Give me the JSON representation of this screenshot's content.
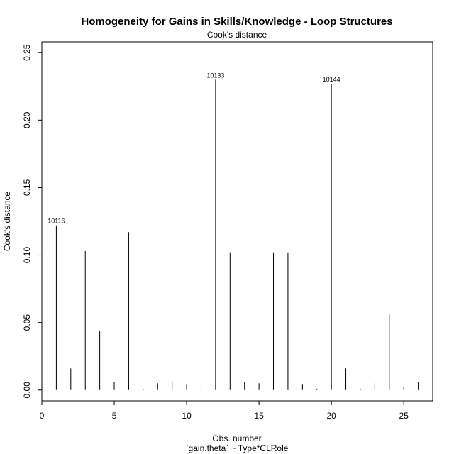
{
  "chart_data": {
    "type": "bar",
    "title": "Homogeneity for Gains in Skills/Knowledge - Loop Structures",
    "subtitle": "Cook's distance",
    "xlabel": "Obs. number",
    "xlabel2": "`gain.theta` ~ Type*CLRole",
    "ylabel": "Cook's distance",
    "xlim": [
      0,
      27
    ],
    "ylim": [
      -0.008,
      0.258
    ],
    "x_ticks": [
      0,
      5,
      10,
      15,
      20,
      25
    ],
    "y_ticks": [
      0.0,
      0.05,
      0.1,
      0.15,
      0.2,
      0.25
    ],
    "y_tick_labels": [
      "0.00",
      "0.05",
      "0.10",
      "0.15",
      "0.20",
      "0.25"
    ],
    "x": [
      1,
      2,
      3,
      4,
      5,
      6,
      7,
      8,
      9,
      10,
      11,
      12,
      13,
      14,
      15,
      16,
      17,
      18,
      19,
      20,
      21,
      22,
      23,
      24,
      25,
      26
    ],
    "values": [
      0.122,
      0.016,
      0.103,
      0.044,
      0.006,
      0.117,
      0.0005,
      0.005,
      0.006,
      0.004,
      0.005,
      0.23,
      0.102,
      0.006,
      0.005,
      0.102,
      0.102,
      0.004,
      0.001,
      0.227,
      0.016,
      0.001,
      0.005,
      0.056,
      0.002,
      0.006
    ],
    "annotations": [
      {
        "x": 1,
        "y": 0.122,
        "text": "10116"
      },
      {
        "x": 12,
        "y": 0.23,
        "text": "10133"
      },
      {
        "x": 20,
        "y": 0.227,
        "text": "10144"
      }
    ],
    "grid": false,
    "legend": "none"
  }
}
